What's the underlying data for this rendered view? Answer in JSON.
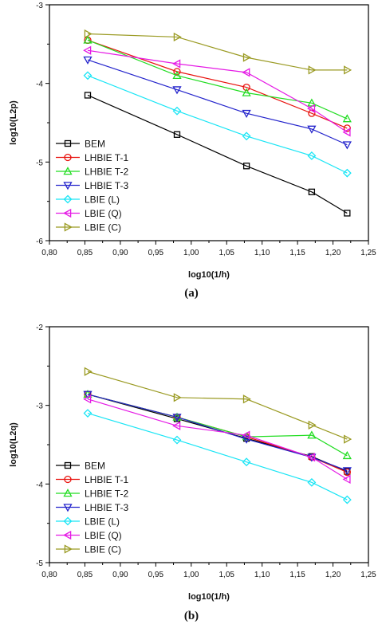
{
  "chart_data": [
    {
      "type": "line",
      "panel_label": "(a)",
      "xlabel": "log10(1/h)",
      "ylabel": "log10(L2p)",
      "xlim": [
        0.8,
        1.25
      ],
      "ylim": [
        -6,
        -3
      ],
      "x_ticks": [
        "0,80",
        "0,85",
        "0,90",
        "0,95",
        "1,00",
        "1,05",
        "1,10",
        "1,15",
        "1,20",
        "1,25"
      ],
      "y_ticks": [
        "-6",
        "-5",
        "-4",
        "-3"
      ],
      "grid": false,
      "legend_position": "bottom-left",
      "x": [
        0.854,
        0.98,
        1.078,
        1.17,
        1.22
      ],
      "series": [
        {
          "name": "BEM",
          "color": "#000000",
          "marker": "square",
          "values": [
            -4.15,
            -4.65,
            -5.05,
            -5.38,
            -5.65
          ]
        },
        {
          "name": "LHBIE T-1",
          "color": "#e8130e",
          "marker": "circle",
          "values": [
            -3.45,
            -3.85,
            -4.05,
            -4.38,
            -4.57
          ]
        },
        {
          "name": "LHBIE T-2",
          "color": "#22dd22",
          "marker": "triangle-up",
          "values": [
            -3.45,
            -3.9,
            -4.12,
            -4.25,
            -4.45
          ]
        },
        {
          "name": "LHBIE T-3",
          "color": "#2424cc",
          "marker": "triangle-down",
          "values": [
            -3.7,
            -4.08,
            -4.38,
            -4.58,
            -4.78
          ]
        },
        {
          "name": "LBIE (L)",
          "color": "#19e5f5",
          "marker": "diamond",
          "values": [
            -3.9,
            -4.35,
            -4.67,
            -4.92,
            -5.14
          ]
        },
        {
          "name": "LBIE (Q)",
          "color": "#e51ae5",
          "marker": "triangle-left",
          "values": [
            -3.58,
            -3.75,
            -3.86,
            -4.32,
            -4.62
          ]
        },
        {
          "name": "LBIE (C)",
          "color": "#9a9a22",
          "marker": "triangle-right",
          "values": [
            -3.37,
            -3.41,
            -3.67,
            -3.83,
            -3.83
          ]
        }
      ]
    },
    {
      "type": "line",
      "panel_label": "(b)",
      "xlabel": "log10(1/h)",
      "ylabel": "log10(L2q)",
      "xlim": [
        0.8,
        1.25
      ],
      "ylim": [
        -5,
        -2
      ],
      "x_ticks": [
        "0,80",
        "0,85",
        "0,90",
        "0,95",
        "1,00",
        "1,05",
        "1,10",
        "1,15",
        "1,20",
        "1,25"
      ],
      "y_ticks": [
        "-5",
        "-4",
        "-3",
        "-2"
      ],
      "grid": false,
      "legend_position": "bottom-left",
      "x": [
        0.854,
        0.98,
        1.078,
        1.17,
        1.22
      ],
      "series": [
        {
          "name": "BEM",
          "color": "#000000",
          "marker": "square",
          "values": [
            -2.86,
            -3.17,
            -3.42,
            -3.65,
            -3.84
          ]
        },
        {
          "name": "LHBIE T-1",
          "color": "#e8130e",
          "marker": "circle",
          "values": [
            -2.86,
            -3.15,
            -3.4,
            -3.66,
            -3.85
          ]
        },
        {
          "name": "LHBIE T-2",
          "color": "#22dd22",
          "marker": "triangle-up",
          "values": [
            -2.86,
            -3.15,
            -3.4,
            -3.38,
            -3.64
          ]
        },
        {
          "name": "LHBIE T-3",
          "color": "#2424cc",
          "marker": "triangle-down",
          "values": [
            -2.86,
            -3.15,
            -3.43,
            -3.66,
            -3.83
          ]
        },
        {
          "name": "LBIE (L)",
          "color": "#19e5f5",
          "marker": "diamond",
          "values": [
            -3.1,
            -3.44,
            -3.72,
            -3.98,
            -4.2
          ]
        },
        {
          "name": "LBIE (Q)",
          "color": "#e51ae5",
          "marker": "triangle-left",
          "values": [
            -2.92,
            -3.26,
            -3.38,
            -3.66,
            -3.94
          ]
        },
        {
          "name": "LBIE (C)",
          "color": "#9a9a22",
          "marker": "triangle-right",
          "values": [
            -2.57,
            -2.9,
            -2.92,
            -3.25,
            -3.43
          ]
        }
      ]
    }
  ]
}
